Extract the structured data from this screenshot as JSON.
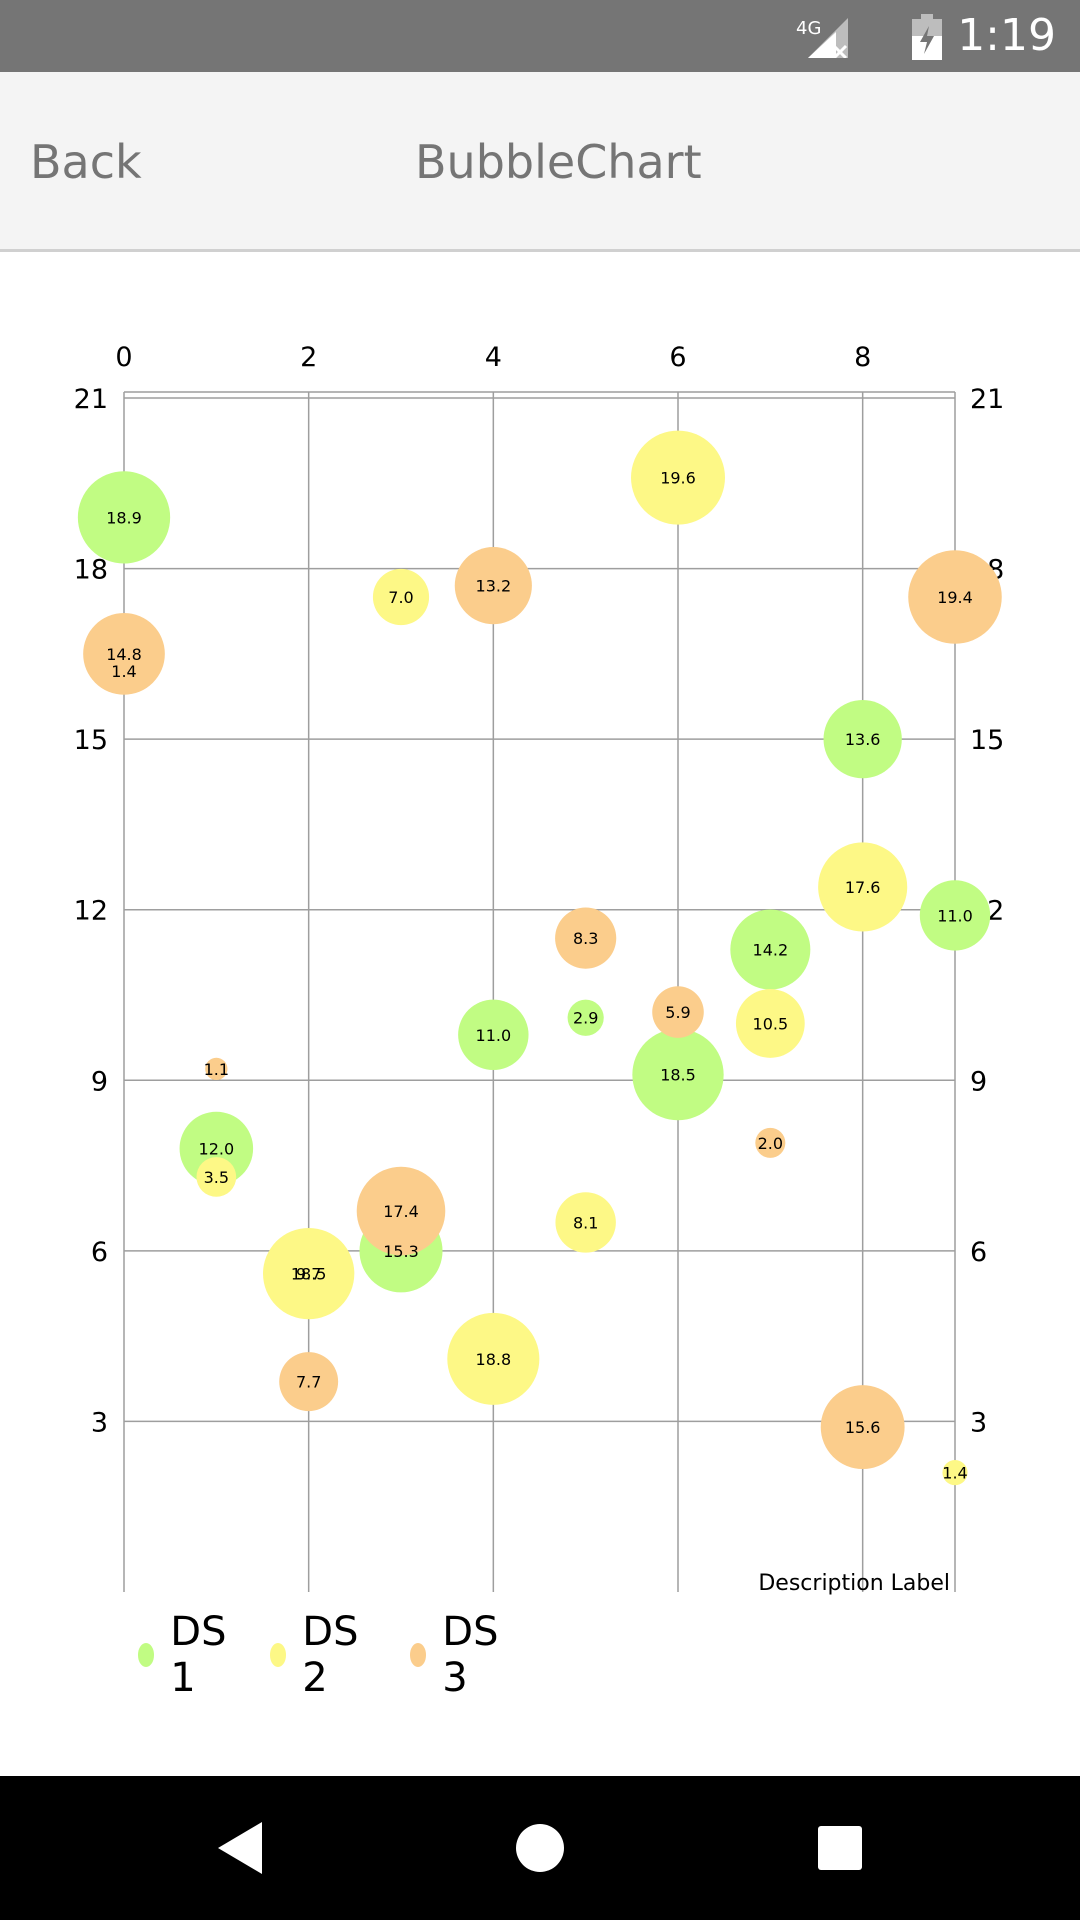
{
  "status_bar": {
    "network_label": "4G",
    "time": "1:19",
    "icons": [
      "signal-4g-icon",
      "battery-icon"
    ]
  },
  "header": {
    "back_label": "Back",
    "title": "BubbleChart"
  },
  "chart_data": {
    "type": "scatter",
    "subtype": "bubble",
    "description": "Description Label",
    "xlim": [
      0,
      9
    ],
    "ylim": [
      0,
      21
    ],
    "x_ticks": [
      "0",
      "2",
      "4",
      "6",
      "8"
    ],
    "y_ticks": [
      "3",
      "6",
      "9",
      "12",
      "15",
      "18",
      "21"
    ],
    "x_axis_position": "top",
    "y_axis_position": "left-and-right",
    "grid": true,
    "legend_position": "bottom-left",
    "series": [
      {
        "name": "DS 1",
        "color": "#c1fc83",
        "points": [
          {
            "x": 0,
            "y": 18.9,
            "size": 18.9
          },
          {
            "x": 1,
            "y": 7.8,
            "size": 12.0
          },
          {
            "x": 2,
            "y": 5.6,
            "size": 9.7
          },
          {
            "x": 3,
            "y": 6.0,
            "size": 15.3
          },
          {
            "x": 4,
            "y": 9.8,
            "size": 11.0
          },
          {
            "x": 5,
            "y": 10.1,
            "size": 2.9
          },
          {
            "x": 6,
            "y": 9.1,
            "size": 18.5
          },
          {
            "x": 7,
            "y": 11.3,
            "size": 14.2
          },
          {
            "x": 8,
            "y": 15.0,
            "size": 13.6
          },
          {
            "x": 9,
            "y": 11.9,
            "size": 11.0
          }
        ]
      },
      {
        "name": "DS 2",
        "color": "#fdf886",
        "points": [
          {
            "x": 0,
            "y": 16.2,
            "size": 1.4
          },
          {
            "x": 1,
            "y": 7.3,
            "size": 3.5
          },
          {
            "x": 2,
            "y": 5.6,
            "size": 18.5
          },
          {
            "x": 3,
            "y": 17.5,
            "size": 7.0
          },
          {
            "x": 4,
            "y": 4.1,
            "size": 18.8
          },
          {
            "x": 5,
            "y": 6.5,
            "size": 8.1
          },
          {
            "x": 6,
            "y": 19.6,
            "size": 19.6
          },
          {
            "x": 7,
            "y": 10.0,
            "size": 10.5
          },
          {
            "x": 8,
            "y": 12.4,
            "size": 17.6
          },
          {
            "x": 9,
            "y": 2.1,
            "size": 1.4
          }
        ]
      },
      {
        "name": "DS 3",
        "color": "#fbcd8c",
        "points": [
          {
            "x": 0,
            "y": 16.5,
            "size": 14.8
          },
          {
            "x": 1,
            "y": 9.2,
            "size": 1.1
          },
          {
            "x": 2,
            "y": 3.7,
            "size": 7.7
          },
          {
            "x": 3,
            "y": 6.7,
            "size": 17.4
          },
          {
            "x": 4,
            "y": 17.7,
            "size": 13.2
          },
          {
            "x": 5,
            "y": 11.5,
            "size": 8.3
          },
          {
            "x": 6,
            "y": 10.2,
            "size": 5.9
          },
          {
            "x": 7,
            "y": 7.9,
            "size": 2.0
          },
          {
            "x": 8,
            "y": 2.9,
            "size": 15.6
          },
          {
            "x": 9,
            "y": 17.5,
            "size": 19.4
          }
        ]
      }
    ]
  },
  "legend": {
    "items": [
      {
        "label": "DS 1",
        "color": "#c1fc83"
      },
      {
        "label": "DS 2",
        "color": "#fdf886"
      },
      {
        "label": "DS 3",
        "color": "#fbcd8c"
      }
    ]
  },
  "system_nav": {
    "buttons": [
      "back-nav-icon",
      "home-nav-icon",
      "recents-nav-icon"
    ]
  }
}
